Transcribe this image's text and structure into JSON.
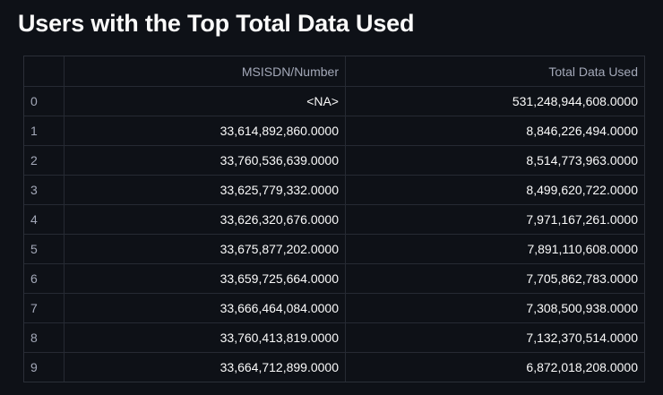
{
  "page": {
    "title": "Users with the Top Total Data Used"
  },
  "table": {
    "columns": [
      "",
      "MSISDN/Number",
      "Total Data Used"
    ],
    "rows": [
      {
        "index": "0",
        "msisdn": "<NA>",
        "total": "531,248,944,608.0000"
      },
      {
        "index": "1",
        "msisdn": "33,614,892,860.0000",
        "total": "8,846,226,494.0000"
      },
      {
        "index": "2",
        "msisdn": "33,760,536,639.0000",
        "total": "8,514,773,963.0000"
      },
      {
        "index": "3",
        "msisdn": "33,625,779,332.0000",
        "total": "8,499,620,722.0000"
      },
      {
        "index": "4",
        "msisdn": "33,626,320,676.0000",
        "total": "7,971,167,261.0000"
      },
      {
        "index": "5",
        "msisdn": "33,675,877,202.0000",
        "total": "7,891,110,608.0000"
      },
      {
        "index": "6",
        "msisdn": "33,659,725,664.0000",
        "total": "7,705,862,783.0000"
      },
      {
        "index": "7",
        "msisdn": "33,666,464,084.0000",
        "total": "7,308,500,938.0000"
      },
      {
        "index": "8",
        "msisdn": "33,760,413,819.0000",
        "total": "7,132,370,514.0000"
      },
      {
        "index": "9",
        "msisdn": "33,664,712,899.0000",
        "total": "6,872,018,208.0000"
      }
    ]
  },
  "colors": {
    "background": "#0e1117",
    "text": "#fafafa",
    "muted_text": "#a3a8b8",
    "grid": "#262a33"
  }
}
